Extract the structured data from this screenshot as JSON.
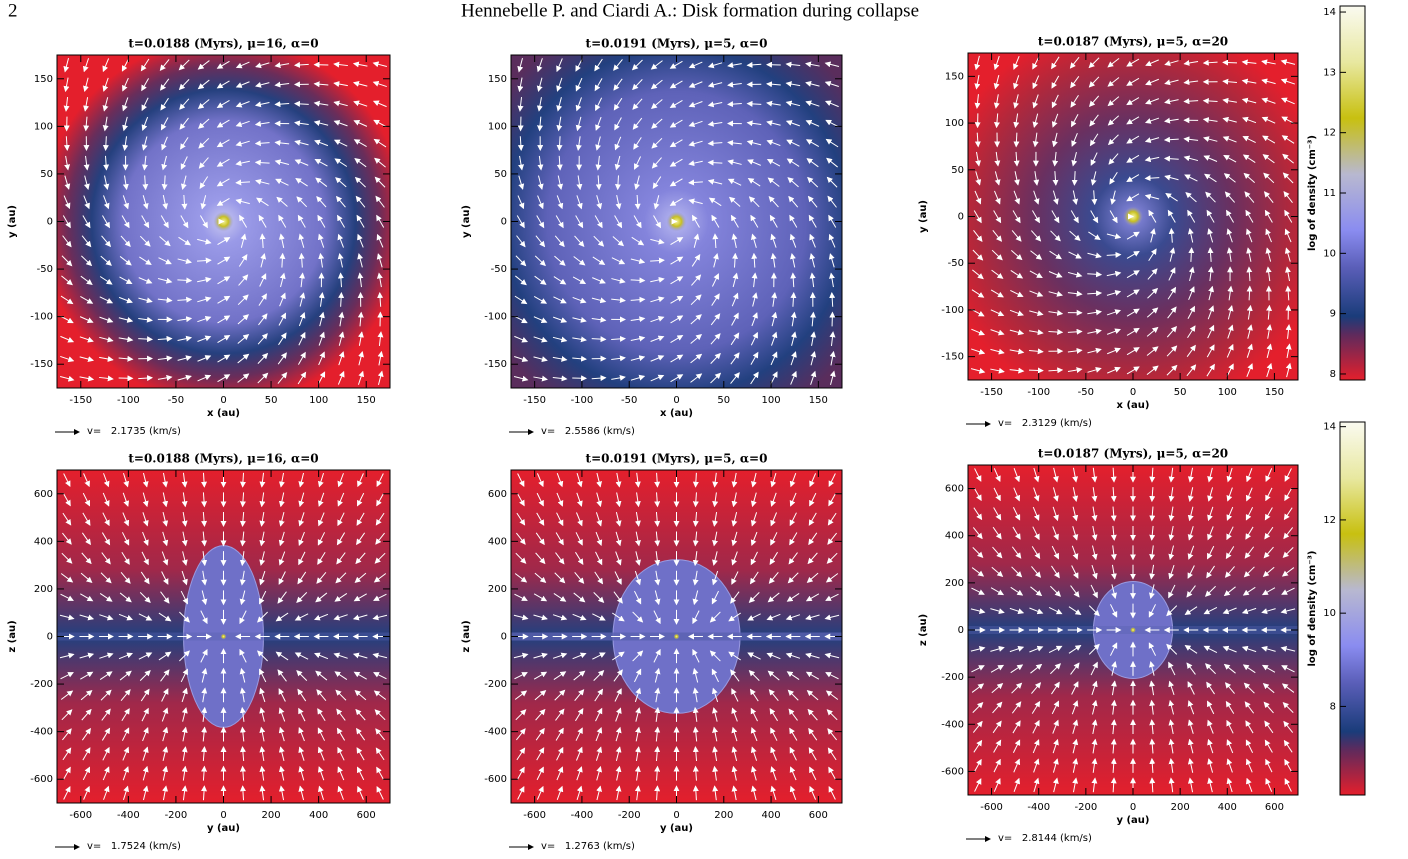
{
  "header": {
    "page_number": "2",
    "running_title": "Hennebelle P. and Ciardi A.: Disk formation during collapse"
  },
  "panels": [
    {
      "title": "t=0.0188 (Myrs), μ=16, α=0",
      "xlabel": "x (au)",
      "ylabel": "y (au)",
      "xlim": [
        -175,
        175
      ],
      "ylim": [
        -175,
        175
      ],
      "xticks": [
        -150,
        -100,
        -50,
        0,
        50,
        100,
        150
      ],
      "yticks": [
        -150,
        -100,
        -50,
        0,
        50,
        100,
        150
      ],
      "velocity_label": "v=   2.1735 (km/s)"
    },
    {
      "title": "t=0.0191 (Myrs), μ=5, α=0",
      "xlabel": "x (au)",
      "ylabel": "y (au)",
      "xlim": [
        -175,
        175
      ],
      "ylim": [
        -175,
        175
      ],
      "xticks": [
        -150,
        -100,
        -50,
        0,
        50,
        100,
        150
      ],
      "yticks": [
        -150,
        -100,
        -50,
        0,
        50,
        100,
        150
      ],
      "velocity_label": "v=   2.5586 (km/s)"
    },
    {
      "title": "t=0.0187 (Myrs), μ=5, α=20",
      "xlabel": "x (au)",
      "ylabel": "y (au)",
      "xlim": [
        -175,
        175
      ],
      "ylim": [
        -175,
        175
      ],
      "xticks": [
        -150,
        -100,
        -50,
        0,
        50,
        100,
        150
      ],
      "yticks": [
        -150,
        -100,
        -50,
        0,
        50,
        100,
        150
      ],
      "velocity_label": "v=   2.3129 (km/s)"
    },
    {
      "title": "t=0.0188 (Myrs), μ=16, α=0",
      "xlabel": "y (au)",
      "ylabel": "z (au)",
      "xlim": [
        -700,
        700
      ],
      "ylim": [
        -700,
        700
      ],
      "xticks": [
        -600,
        -400,
        -200,
        0,
        200,
        400,
        600
      ],
      "yticks": [
        -600,
        -400,
        -200,
        0,
        200,
        400,
        600
      ],
      "velocity_label": "v=   1.7524 (km/s)"
    },
    {
      "title": "t=0.0191 (Myrs), μ=5, α=0",
      "xlabel": "y (au)",
      "ylabel": "z (au)",
      "xlim": [
        -700,
        700
      ],
      "ylim": [
        -700,
        700
      ],
      "xticks": [
        -600,
        -400,
        -200,
        0,
        200,
        400,
        600
      ],
      "yticks": [
        -600,
        -400,
        -200,
        0,
        200,
        400,
        600
      ],
      "velocity_label": "v=   1.2763 (km/s)"
    },
    {
      "title": "t=0.0187 (Myrs), μ=5, α=20",
      "xlabel": "y (au)",
      "ylabel": "z (au)",
      "xlim": [
        -700,
        700
      ],
      "ylim": [
        -700,
        700
      ],
      "xticks": [
        -600,
        -400,
        -200,
        0,
        200,
        400,
        600
      ],
      "yticks": [
        -600,
        -400,
        -200,
        0,
        200,
        400,
        600
      ],
      "velocity_label": "v=   2.8144 (km/s)"
    }
  ],
  "colorbars": [
    {
      "label": "log of density (cm⁻³)",
      "lim": [
        7.9,
        14.1
      ],
      "ticks": [
        8,
        9,
        10,
        11,
        12,
        13,
        14
      ]
    },
    {
      "label": "log of density (cm⁻³)",
      "lim": [
        6.1,
        14.1
      ],
      "ticks": [
        8,
        10,
        12,
        14
      ]
    }
  ]
}
